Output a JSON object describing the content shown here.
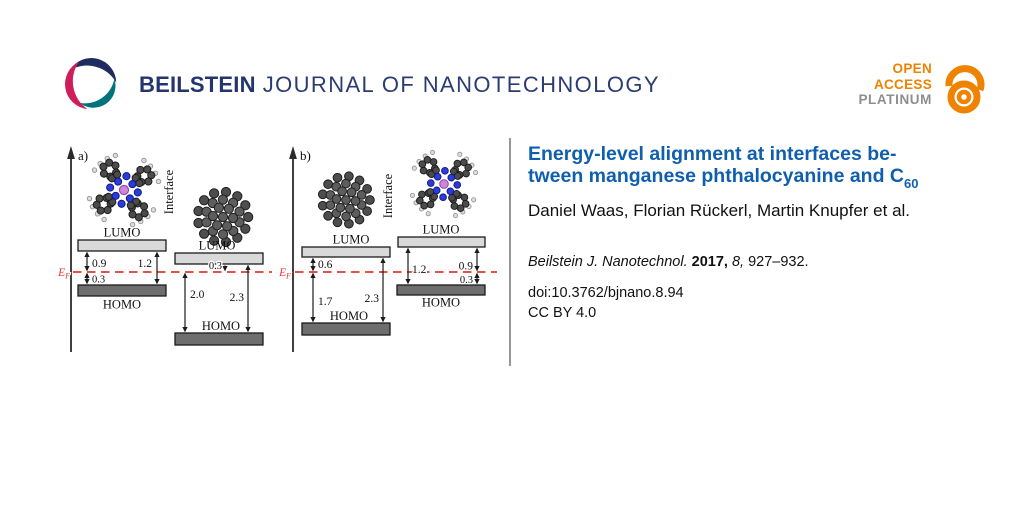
{
  "header": {
    "brand_bold": "BEILSTEIN",
    "brand_rest": "JOURNAL OF NANOTECHNOLOGY",
    "open_access": {
      "open": "OPEN",
      "access": "ACCESS",
      "platinum": "PLATINUM"
    }
  },
  "article": {
    "title_line1": "Energy-level alignment at interfaces be-",
    "title_line2": "tween manganese phthalocyanine and C",
    "title_sub": "60",
    "authors": "Daniel Waas, Florian Rückerl, Martin Knupfer et al.",
    "citation": {
      "journal": "Beilstein J. Nanotechnol.",
      "year": "2017,",
      "volume": "8,",
      "pages": "927–932."
    },
    "doi": "doi:10.3762/bjnano.8.94",
    "license": "CC BY 4.0"
  },
  "figure": {
    "fermi": {
      "symbol": "E",
      "sub": "F"
    },
    "panel_a": {
      "label": "a)",
      "interface": "Interface",
      "mnpc": {
        "lumo": "LUMO",
        "homo": "HOMO",
        "lumo_to_ef": "0.9",
        "ef_to_homo": "0.3",
        "gap": "1.2"
      },
      "c60": {
        "lumo": "LUMO",
        "homo": "HOMO",
        "lumo_to_ef": "0.3",
        "ef_to_homo": "2.0",
        "gap": "2.3"
      }
    },
    "panel_b": {
      "label": "b)",
      "interface": "Interface",
      "c60": {
        "lumo": "LUMO",
        "homo": "HOMO",
        "lumo_to_ef": "0.6",
        "ef_to_homo": "1.7",
        "gap": "2.3"
      },
      "mnpc": {
        "lumo": "LUMO",
        "homo": "HOMO",
        "gap": "1.2",
        "lumo_to_ef": "0.9",
        "ef_to_homo": "0.3"
      }
    },
    "colors": {
      "fermi_line": "#e8352b",
      "lumo_fill": "#d9d9d9",
      "homo_fill": "#6e6e6e"
    }
  },
  "colors": {
    "brand_navy": "#23356e",
    "title_blue": "#0f5fae",
    "oa_orange": "#ef8200",
    "oa_gray": "#8e8e8e"
  }
}
